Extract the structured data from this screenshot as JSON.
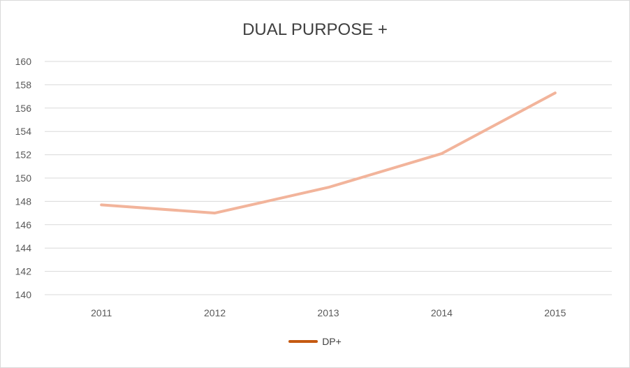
{
  "chart_data": {
    "type": "line",
    "title": "DUAL PURPOSE +",
    "xlabel": "",
    "ylabel": "",
    "categories": [
      "2011",
      "2012",
      "2013",
      "2014",
      "2015"
    ],
    "series": [
      {
        "name": "DP+",
        "values": [
          147.7,
          147.0,
          149.2,
          152.1,
          157.3
        ],
        "color": "#f2b49b",
        "legend_color": "#c55a11"
      }
    ],
    "ylim": [
      140,
      160
    ],
    "yticks": [
      "140",
      "142",
      "144",
      "146",
      "148",
      "150",
      "152",
      "154",
      "156",
      "158",
      "160"
    ],
    "grid": true,
    "legend_position": "bottom",
    "colors": {
      "gridline": "#d9d9d9",
      "axis_text": "#595959",
      "title_text": "#404040"
    }
  }
}
